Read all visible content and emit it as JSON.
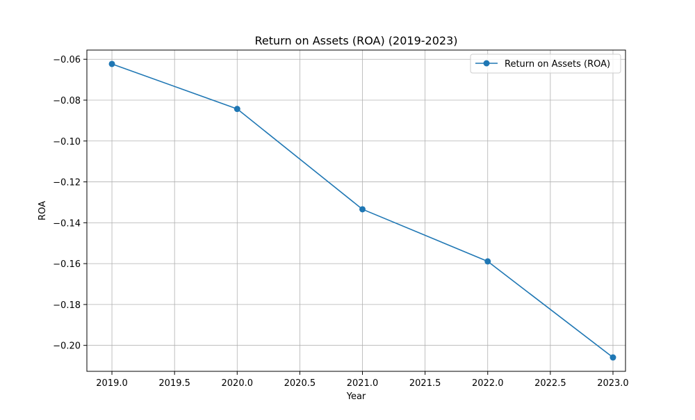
{
  "chart_data": {
    "type": "line",
    "title": "Return on Assets (ROA) (2019-2023)",
    "xlabel": "Year",
    "ylabel": "ROA",
    "x": [
      2019,
      2020,
      2021,
      2022,
      2023
    ],
    "series": [
      {
        "name": "Return on Assets (ROA)",
        "values": [
          -0.0623,
          -0.0843,
          -0.1334,
          -0.1589,
          -0.2059
        ],
        "color": "#1f77b4",
        "marker": "circle"
      }
    ],
    "xlim": [
      2018.8,
      2023.1
    ],
    "ylim": [
      -0.2127,
      -0.0555
    ],
    "xticks": [
      2019.0,
      2019.5,
      2020.0,
      2020.5,
      2021.0,
      2021.5,
      2022.0,
      2022.5,
      2023.0
    ],
    "xtick_labels": [
      "2019.0",
      "2019.5",
      "2020.0",
      "2020.5",
      "2021.0",
      "2021.5",
      "2022.0",
      "2022.5",
      "2023.0"
    ],
    "yticks": [
      -0.06,
      -0.08,
      -0.1,
      -0.12,
      -0.14,
      -0.16,
      -0.18,
      -0.2
    ],
    "ytick_labels": [
      "−0.06",
      "−0.08",
      "−0.10",
      "−0.12",
      "−0.14",
      "−0.16",
      "−0.18",
      "−0.20"
    ],
    "grid": true,
    "legend_position": "top-right"
  }
}
